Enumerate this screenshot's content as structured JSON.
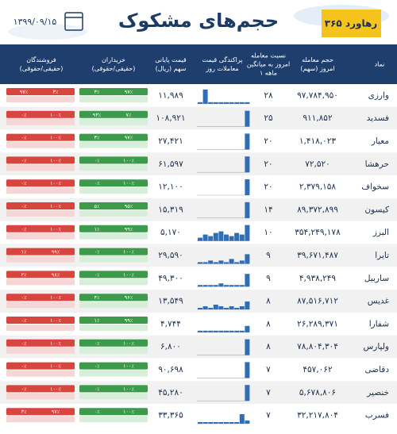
{
  "header": {
    "title": "حجم‌های مشکوک",
    "date": "۱۳۹۹/۰۹/۱۵",
    "logo": "رهاورد ۳۶۵"
  },
  "table": {
    "columns": [
      [
        "نماد"
      ],
      [
        "حجم معامله",
        "امروز (سهم)"
      ],
      [
        "نسبت معامله",
        "امروز به میانگین",
        "۱ ماهه"
      ],
      [
        "پراکندگی قیمت",
        "معاملات روز"
      ],
      [
        "قیمت پایانی",
        "سهم (ریال)"
      ],
      [
        "خریداران",
        "(حقیقی/حقوقی)"
      ],
      [
        "فروشندگان",
        "(حقیقی/حقوقی)"
      ]
    ],
    "rows": [
      {
        "symbol": "وارزی",
        "volume": "۹۷,۷۸۴,۹۵۰",
        "ratio": "۲۸",
        "price": "۱۱,۹۸۹",
        "dist": [
          1,
          9,
          1,
          1,
          1,
          1,
          1,
          1,
          1,
          1
        ],
        "buyers": [
          "۹۷٪",
          "۳٪"
        ],
        "sellers": [
          "۳٪",
          "۹۷٪"
        ]
      },
      {
        "symbol": "فسدید",
        "volume": "۹۱۱,۸۵۲",
        "ratio": "۲۵",
        "price": "۱۰۸,۹۲۱",
        "dist": [
          0,
          0,
          0,
          0,
          0,
          0,
          0,
          0,
          0,
          10
        ],
        "buyers": [
          "۷٪",
          "۹۳٪"
        ],
        "sellers": [
          "۱۰۰٪",
          "۰٪"
        ]
      },
      {
        "symbol": "معیار",
        "volume": "۱,۴۱۸,۰۲۳",
        "ratio": "۲۰",
        "price": "۲۷,۴۲۱",
        "dist": [
          0,
          0,
          0,
          0,
          0,
          0,
          0,
          0,
          0,
          10
        ],
        "buyers": [
          "۹۷٪",
          "۳٪"
        ],
        "sellers": [
          "۱۰۰٪",
          "۰٪"
        ]
      },
      {
        "symbol": "حرهشا",
        "volume": "۷۲,۵۲۰",
        "ratio": "۲۰",
        "price": "۶۱,۵۹۷",
        "dist": [
          0,
          0,
          0,
          0,
          0,
          0,
          0,
          0,
          0,
          10
        ],
        "buyers": [
          "۱۰۰٪",
          "۰٪"
        ],
        "sellers": [
          "۱۰۰٪",
          "۰٪"
        ]
      },
      {
        "symbol": "سخواف",
        "volume": "۲,۳۷۹,۱۵۸",
        "ratio": "۲۰",
        "price": "۱۲,۱۰۰",
        "dist": [
          0,
          0,
          0,
          0,
          0,
          0,
          0,
          0,
          0,
          10
        ],
        "buyers": [
          "۱۰۰٪",
          "۰٪"
        ],
        "sellers": [
          "۱۰۰٪",
          "۰٪"
        ]
      },
      {
        "symbol": "کیسون",
        "volume": "۸۹,۳۷۲,۸۹۹",
        "ratio": "۱۴",
        "price": "۱۵,۳۱۹",
        "dist": [
          0,
          0,
          0,
          0,
          0,
          0,
          0,
          0,
          0,
          10
        ],
        "buyers": [
          "۹۵٪",
          "۵٪"
        ],
        "sellers": [
          "۱۰۰٪",
          "۰٪"
        ]
      },
      {
        "symbol": "البرز",
        "volume": "۳۵۴,۲۴۹,۱۷۸",
        "ratio": "۱۰",
        "price": "۵,۱۷۰",
        "dist": [
          2,
          4,
          3,
          5,
          6,
          4,
          3,
          5,
          4,
          10
        ],
        "buyers": [
          "۹۹٪",
          "۱٪"
        ],
        "sellers": [
          "۱۰۰٪",
          "۰٪"
        ]
      },
      {
        "symbol": "تایرا",
        "volume": "۳۹,۶۷۱,۴۸۷",
        "ratio": "۹",
        "price": "۲۹,۵۹۰",
        "dist": [
          1,
          1,
          2,
          1,
          2,
          1,
          3,
          1,
          2,
          6
        ],
        "buyers": [
          "۱۰۰٪",
          "۰٪"
        ],
        "sellers": [
          "۹۹٪",
          "۱٪"
        ]
      },
      {
        "symbol": "ساربیل",
        "volume": "۴,۹۳۸,۲۴۹",
        "ratio": "۹",
        "price": "۴۹,۳۰۰",
        "dist": [
          1,
          1,
          1,
          1,
          2,
          1,
          1,
          1,
          1,
          8
        ],
        "buyers": [
          "۱۰۰٪",
          "۰٪"
        ],
        "sellers": [
          "۹۸٪",
          "۲٪"
        ]
      },
      {
        "symbol": "غدیس",
        "volume": "۸۷,۵۱۶,۷۱۲",
        "ratio": "۸",
        "price": "۱۳,۵۴۹",
        "dist": [
          1,
          2,
          1,
          3,
          2,
          1,
          2,
          1,
          2,
          5
        ],
        "buyers": [
          "۹۶٪",
          "۴٪"
        ],
        "sellers": [
          "۱۰۰٪",
          "۰٪"
        ]
      },
      {
        "symbol": "شفارا",
        "volume": "۲۶,۲۸۹,۳۷۱",
        "ratio": "۸",
        "price": "۴,۷۴۴",
        "dist": [
          1,
          1,
          1,
          1,
          1,
          1,
          1,
          1,
          1,
          4
        ],
        "buyers": [
          "۹۹٪",
          "۱٪"
        ],
        "sellers": [
          "۱۰۰٪",
          "۰٪"
        ]
      },
      {
        "symbol": "ولپارس",
        "volume": "۷۸,۸۰۴,۳۰۴",
        "ratio": "۸",
        "price": "۶,۸۰۰",
        "dist": [
          0,
          0,
          0,
          0,
          0,
          0,
          0,
          0,
          0,
          10
        ],
        "buyers": [
          "۱۰۰٪",
          "۰٪"
        ],
        "sellers": [
          "۱۰۰٪",
          "۰٪"
        ]
      },
      {
        "symbol": "دقاضی",
        "volume": "۴۵۷,۰۶۲",
        "ratio": "۷",
        "price": "۹۰,۶۹۸",
        "dist": [
          0,
          0,
          0,
          0,
          0,
          0,
          0,
          0,
          0,
          10
        ],
        "buyers": [
          "۱۰۰٪",
          "۰٪"
        ],
        "sellers": [
          "۱۰۰٪",
          "۰٪"
        ]
      },
      {
        "symbol": "خنصیر",
        "volume": "۵,۶۷۸,۸۰۶",
        "ratio": "۷",
        "price": "۴۵,۲۸۰",
        "dist": [
          0,
          0,
          0,
          0,
          0,
          0,
          0,
          0,
          0,
          10
        ],
        "buyers": [
          "۱۰۰٪",
          "۰٪"
        ],
        "sellers": [
          "۱۰۰٪",
          "۰٪"
        ]
      },
      {
        "symbol": "فسرب",
        "volume": "۳۲,۲۱۷,۸۰۴",
        "ratio": "۷",
        "price": "۳۳,۳۶۵",
        "dist": [
          1,
          1,
          1,
          1,
          1,
          1,
          1,
          1,
          6,
          2
        ],
        "buyers": [
          "۱۰۰٪",
          "۰٪"
        ],
        "sellers": [
          "۹۷٪",
          "۳٪"
        ]
      }
    ]
  }
}
